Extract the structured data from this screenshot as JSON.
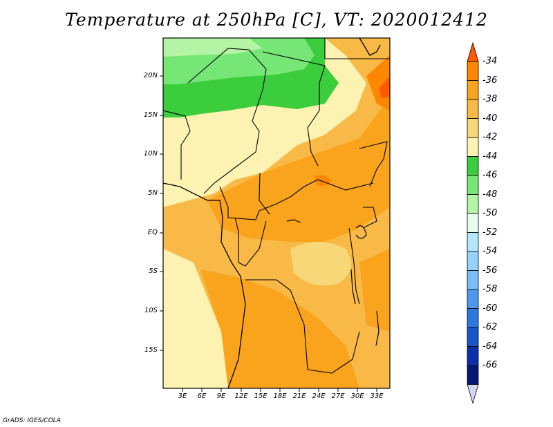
{
  "title": "Temperature at 250hPa [C], VT: 2020012412",
  "credit": "GrADS: IGES/COLA",
  "map": {
    "lat_labels": [
      "20N",
      "15N",
      "10N",
      "5N",
      "EQ",
      "5S",
      "10S",
      "15S"
    ],
    "lon_labels": [
      "3E",
      "6E",
      "9E",
      "12E",
      "15E",
      "18E",
      "21E",
      "24E",
      "27E",
      "30E",
      "33E"
    ],
    "region": "Central Africa"
  },
  "colorbar": {
    "labels": [
      "-34",
      "-36",
      "-38",
      "-40",
      "-42",
      "-44",
      "-46",
      "-48",
      "-50",
      "-52",
      "-54",
      "-56",
      "-58",
      "-60",
      "-62",
      "-64",
      "-66"
    ],
    "colors": [
      "#fe5a00",
      "#fd8700",
      "#f9a41c",
      "#f8b947",
      "#f8d778",
      "#fcf3b3",
      "#3ccd3c",
      "#76e676",
      "#b3f5a4",
      "#e6fcf0",
      "#b4e7fc",
      "#96d3fb",
      "#79bdf9",
      "#4b98ee",
      "#2a78e0",
      "#1656c8",
      "#0b2fa8",
      "#051876",
      "#d6d6f4"
    ]
  }
}
